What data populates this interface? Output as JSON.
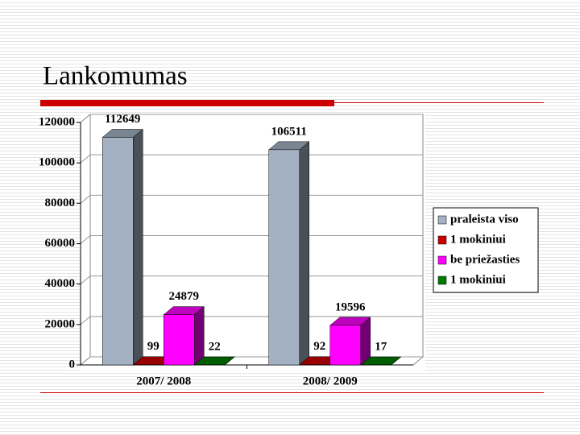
{
  "chart_data": {
    "type": "bar3d",
    "title": "Lankomumas",
    "categories": [
      "2007/ 2008",
      "2008/ 2009"
    ],
    "series": [
      {
        "name": "praleista viso",
        "color": "#a3b1c2",
        "values": [
          112649,
          106511
        ]
      },
      {
        "name": "1 mokiniui",
        "color": "#cc0000",
        "values": [
          99,
          92
        ]
      },
      {
        "name": "be priežasties",
        "color": "#ff00ff",
        "values": [
          24879,
          19596
        ]
      },
      {
        "name": "1 mokiniui",
        "color": "#007a00",
        "values": [
          22,
          17
        ]
      }
    ],
    "ylim": [
      0,
      120000
    ],
    "yticks": [
      0,
      20000,
      40000,
      60000,
      80000,
      100000,
      120000
    ],
    "grid": true,
    "legend": "right"
  }
}
